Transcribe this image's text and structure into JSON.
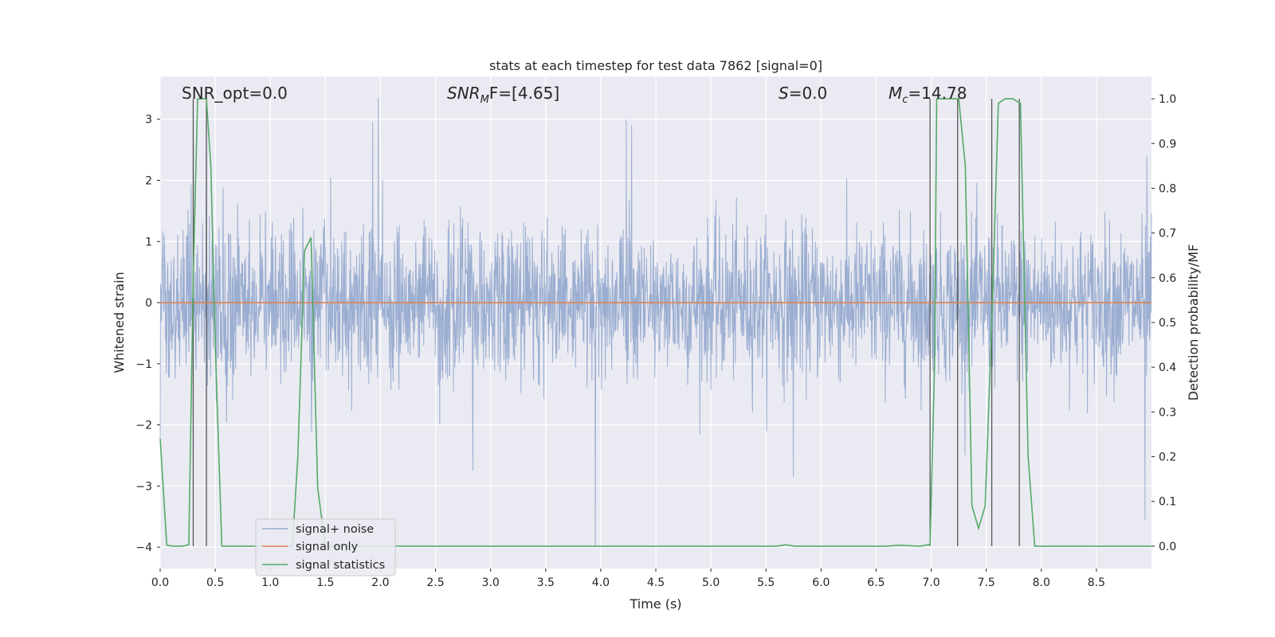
{
  "chart_data": {
    "type": "line",
    "title": "stats at each timestep for test data 7862 [signal=0]",
    "xlabel": "Time (s)",
    "ylabel_left": "Whitened strain",
    "ylabel_right": "Detection probability/MF",
    "xlim": [
      0.0,
      9.0
    ],
    "ylim_left": [
      -4.35,
      3.7
    ],
    "ylim_right": [
      -0.05,
      1.05
    ],
    "x_ticks": [
      "0.0",
      "0.5",
      "1.0",
      "1.5",
      "2.0",
      "2.5",
      "3.0",
      "3.5",
      "4.0",
      "4.5",
      "5.0",
      "5.5",
      "6.0",
      "6.5",
      "7.0",
      "7.5",
      "8.0",
      "8.5"
    ],
    "y_ticks_left": [
      "3",
      "2",
      "1",
      "0",
      "−1",
      "−2",
      "−3",
      "−4"
    ],
    "y_ticks_right": [
      "1.0",
      "0.9",
      "0.8",
      "0.7",
      "0.6",
      "0.5",
      "0.4",
      "0.3",
      "0.2",
      "0.1",
      "0.0"
    ],
    "grid": true,
    "annotations": {
      "snr_opt": "SNR_opt=0.0",
      "snr_mf_main": "SNR",
      "snr_mf_sub": "M",
      "snr_mf_rest": "F=[4.65]",
      "s_main": "S",
      "s_rest": "=0.0",
      "mc_main": "M",
      "mc_sub": "c",
      "mc_rest": "=14.78"
    },
    "legend": {
      "position": "lower-left",
      "entries": [
        {
          "label": "signal+ noise",
          "color": "#4c72b0"
        },
        {
          "label": "signal only",
          "color": "#dd8452"
        },
        {
          "label": "signal statistics",
          "color": "#55a868"
        }
      ]
    },
    "series": [
      {
        "name": "signal+ noise",
        "axis": "left",
        "kind": "noise",
        "color": "#4c72b0",
        "amplitude_std": 1.0,
        "spikes": [
          {
            "x": 0.3,
            "y": 2.6
          },
          {
            "x": 0.42,
            "y": 2.8
          },
          {
            "x": 1.93,
            "y": 2.95
          },
          {
            "x": 1.98,
            "y": 3.35
          },
          {
            "x": 3.95,
            "y": -4.0
          },
          {
            "x": 4.23,
            "y": 3.0
          },
          {
            "x": 4.28,
            "y": 2.9
          },
          {
            "x": 2.84,
            "y": -2.75
          },
          {
            "x": 5.75,
            "y": -2.85
          },
          {
            "x": 8.94,
            "y": -3.55
          },
          {
            "x": 8.96,
            "y": 2.4
          }
        ]
      },
      {
        "name": "signal only",
        "axis": "left",
        "color": "#dd8452",
        "x": [
          0.0,
          9.0
        ],
        "y": [
          0.0,
          0.0
        ]
      },
      {
        "name": "signal statistics",
        "axis": "right",
        "color": "#55a868",
        "x": [
          0.0,
          0.06,
          0.12,
          0.2,
          0.26,
          0.3,
          0.34,
          0.38,
          0.42,
          0.46,
          0.5,
          0.56,
          0.62,
          1.0,
          1.2,
          1.25,
          1.31,
          1.37,
          1.43,
          1.5,
          1.56,
          2.0,
          2.9,
          3.0,
          4.0,
          5.0,
          5.5,
          5.6,
          5.68,
          5.76,
          6.0,
          6.6,
          6.7,
          6.9,
          6.99,
          7.03,
          7.05,
          7.1,
          7.25,
          7.31,
          7.37,
          7.43,
          7.49,
          7.55,
          7.61,
          7.67,
          7.74,
          7.81,
          7.88,
          7.94,
          8.0,
          9.0
        ],
        "y": [
          0.24,
          0.002,
          0.0,
          0.0,
          0.003,
          0.6,
          1.0,
          1.0,
          1.0,
          0.85,
          0.45,
          0.0,
          0.0,
          0.0,
          0.0,
          0.2,
          0.66,
          0.69,
          0.13,
          0.0,
          0.0,
          0.0,
          0.0,
          0.0,
          0.0,
          0.0,
          0.0,
          0.0,
          0.003,
          0.0,
          0.0,
          0.0,
          0.002,
          0.0,
          0.004,
          0.4,
          1.0,
          1.0,
          1.0,
          0.85,
          0.09,
          0.04,
          0.09,
          0.5,
          0.99,
          1.0,
          1.0,
          0.99,
          0.2,
          0.0,
          0.0,
          0.0
        ]
      }
    ],
    "vertical_markers_x": [
      0.3,
      0.42,
      6.99,
      7.24,
      7.55,
      7.8
    ]
  }
}
